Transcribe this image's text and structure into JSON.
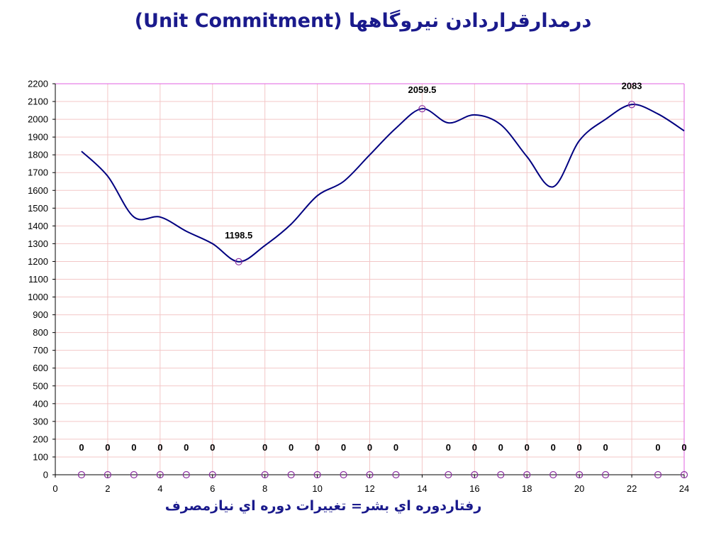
{
  "header": {
    "title": "درمدارقراردادن نيروگاهها (Unit Commitment)"
  },
  "footer": {
    "x_caption": "رفتاردوره اي بشر= تغييرات دوره اي نيازمصرف"
  },
  "colors": {
    "line": "#000080",
    "marker": "#8b2fa0",
    "grid": "#f3c7c7",
    "plot_border_top_right": "#e060e0",
    "axis": "#000000",
    "title": "#1a1a8c"
  },
  "chart_data": {
    "type": "line",
    "title": "(Unit Commitment)",
    "xlabel": "",
    "ylabel": "",
    "xlim": [
      0,
      24
    ],
    "ylim": [
      0,
      2200
    ],
    "x_ticks": [
      0,
      2,
      4,
      6,
      8,
      10,
      12,
      14,
      16,
      18,
      20,
      22,
      24
    ],
    "y_ticks": [
      0,
      100,
      200,
      300,
      400,
      500,
      600,
      700,
      800,
      900,
      1000,
      1100,
      1200,
      1300,
      1400,
      1500,
      1600,
      1700,
      1800,
      1900,
      2000,
      2100,
      2200
    ],
    "grid": true,
    "series": [
      {
        "style": "smooth-line",
        "x": [
          1,
          2,
          3,
          4,
          5,
          6,
          7,
          8,
          9,
          10,
          11,
          12,
          13,
          14,
          15,
          16,
          17,
          18,
          19,
          20,
          21,
          22,
          23,
          24
        ],
        "values": [
          1820,
          1680,
          1450,
          1450,
          1370,
          1300,
          1198.5,
          1290,
          1410,
          1570,
          1650,
          1800,
          1950,
          2059.5,
          1980,
          2025,
          1970,
          1790,
          1620,
          1880,
          2000,
          2083,
          2030,
          1935
        ],
        "marked_points": [
          {
            "x": 7,
            "y": 1198.5,
            "label": "1198.5"
          },
          {
            "x": 14,
            "y": 2059.5,
            "label": "2059.5"
          },
          {
            "x": 22,
            "y": 2083,
            "label": "2083"
          }
        ]
      },
      {
        "style": "markers",
        "x": [
          1,
          2,
          3,
          4,
          5,
          6,
          8,
          9,
          10,
          11,
          12,
          13,
          15,
          16,
          17,
          18,
          19,
          20,
          21,
          23,
          24
        ],
        "values": [
          0,
          0,
          0,
          0,
          0,
          0,
          0,
          0,
          0,
          0,
          0,
          0,
          0,
          0,
          0,
          0,
          0,
          0,
          0,
          0,
          0
        ],
        "labels": [
          "0",
          "0",
          "0",
          "0",
          "0",
          "0",
          "0",
          "0",
          "0",
          "0",
          "0",
          "0",
          "0",
          "0",
          "0",
          "0",
          "0",
          "0",
          "0",
          "0",
          "0"
        ]
      }
    ]
  }
}
